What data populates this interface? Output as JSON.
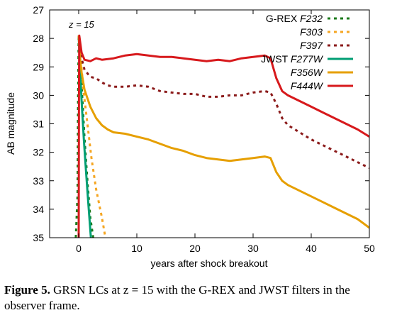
{
  "chart_data": {
    "type": "line",
    "xlabel": "years after shock breakout",
    "ylabel": "AB magnitude",
    "xlim": [
      -5,
      50
    ],
    "ylim": [
      35,
      27
    ],
    "y_inverted": true,
    "xticks": [
      0,
      10,
      20,
      30,
      40,
      50
    ],
    "yticks": [
      27,
      28,
      29,
      30,
      31,
      32,
      33,
      34,
      35
    ],
    "annotation": "z = 15",
    "legend_position": "top-right",
    "grid": false,
    "series": [
      {
        "name": "F232",
        "group": "G-REX",
        "color": "#1a7a1a",
        "dash": "dotted",
        "points": [
          [
            -0.5,
            35
          ],
          [
            -0.2,
            33.5
          ],
          [
            -0.1,
            30
          ],
          [
            0,
            27.9
          ],
          [
            0.2,
            28.5
          ],
          [
            0.6,
            30
          ],
          [
            1.0,
            31.5
          ],
          [
            1.5,
            33
          ],
          [
            2.0,
            34.3
          ],
          [
            2.5,
            35
          ]
        ]
      },
      {
        "name": "F303",
        "group": "G-REX",
        "color": "#f5a623",
        "dash": "dotted",
        "points": [
          [
            0,
            27.9
          ],
          [
            0.3,
            28.6
          ],
          [
            0.8,
            29.8
          ],
          [
            1.5,
            31
          ],
          [
            2.2,
            32.2
          ],
          [
            3,
            33.3
          ],
          [
            4,
            34.3
          ],
          [
            4.6,
            35
          ]
        ]
      },
      {
        "name": "F397",
        "group": "G-REX",
        "color": "#8b1a1a",
        "dash": "dotted",
        "points": [
          [
            0,
            27.9
          ],
          [
            0.5,
            28.7
          ],
          [
            1,
            29.1
          ],
          [
            2,
            29.35
          ],
          [
            3,
            29.4
          ],
          [
            4,
            29.55
          ],
          [
            5,
            29.65
          ],
          [
            6,
            29.7
          ],
          [
            8,
            29.7
          ],
          [
            10,
            29.65
          ],
          [
            12,
            29.7
          ],
          [
            14,
            29.85
          ],
          [
            16,
            29.9
          ],
          [
            18,
            29.95
          ],
          [
            20,
            29.95
          ],
          [
            22,
            30.05
          ],
          [
            24,
            30.05
          ],
          [
            26,
            30.0
          ],
          [
            28,
            30.0
          ],
          [
            30,
            29.9
          ],
          [
            32,
            29.85
          ],
          [
            33,
            29.9
          ],
          [
            34,
            30.3
          ],
          [
            35,
            30.8
          ],
          [
            36,
            31.05
          ],
          [
            38,
            31.3
          ],
          [
            40,
            31.55
          ],
          [
            42,
            31.75
          ],
          [
            44,
            31.95
          ],
          [
            46,
            32.15
          ],
          [
            48,
            32.35
          ],
          [
            50,
            32.55
          ]
        ]
      },
      {
        "name": "F277W",
        "group": "JWST",
        "color": "#009e73",
        "dash": "solid",
        "points": [
          [
            0,
            27.9
          ],
          [
            0.2,
            28.9
          ],
          [
            0.5,
            30.2
          ],
          [
            0.9,
            31.6
          ],
          [
            1.3,
            32.8
          ],
          [
            1.7,
            33.9
          ],
          [
            2.1,
            35
          ]
        ]
      },
      {
        "name": "F356W",
        "group": "JWST",
        "color": "#e69f00",
        "dash": "solid",
        "points": [
          [
            0,
            27.9
          ],
          [
            0.2,
            28.6
          ],
          [
            0.5,
            29.2
          ],
          [
            1,
            29.8
          ],
          [
            2,
            30.4
          ],
          [
            3,
            30.8
          ],
          [
            4,
            31.05
          ],
          [
            5,
            31.2
          ],
          [
            6,
            31.3
          ],
          [
            8,
            31.35
          ],
          [
            10,
            31.45
          ],
          [
            12,
            31.55
          ],
          [
            14,
            31.7
          ],
          [
            16,
            31.85
          ],
          [
            18,
            31.95
          ],
          [
            20,
            32.1
          ],
          [
            22,
            32.2
          ],
          [
            24,
            32.25
          ],
          [
            26,
            32.3
          ],
          [
            28,
            32.25
          ],
          [
            30,
            32.2
          ],
          [
            32,
            32.15
          ],
          [
            33,
            32.2
          ],
          [
            34,
            32.7
          ],
          [
            35,
            33.0
          ],
          [
            36,
            33.15
          ],
          [
            38,
            33.35
          ],
          [
            40,
            33.55
          ],
          [
            42,
            33.75
          ],
          [
            44,
            33.95
          ],
          [
            46,
            34.15
          ],
          [
            48,
            34.35
          ],
          [
            50,
            34.65
          ]
        ]
      },
      {
        "name": "F444W",
        "group": "JWST",
        "color": "#d7191c",
        "dash": "solid",
        "points": [
          [
            0,
            35
          ],
          [
            0.05,
            30
          ],
          [
            0.1,
            27.9
          ],
          [
            0.5,
            28.5
          ],
          [
            1,
            28.75
          ],
          [
            2,
            28.8
          ],
          [
            3,
            28.7
          ],
          [
            4,
            28.75
          ],
          [
            6,
            28.7
          ],
          [
            8,
            28.6
          ],
          [
            10,
            28.55
          ],
          [
            12,
            28.6
          ],
          [
            14,
            28.65
          ],
          [
            16,
            28.65
          ],
          [
            18,
            28.7
          ],
          [
            20,
            28.75
          ],
          [
            22,
            28.8
          ],
          [
            24,
            28.75
          ],
          [
            26,
            28.8
          ],
          [
            28,
            28.7
          ],
          [
            30,
            28.65
          ],
          [
            32,
            28.6
          ],
          [
            33,
            28.7
          ],
          [
            34,
            29.4
          ],
          [
            35,
            29.85
          ],
          [
            36,
            30.0
          ],
          [
            38,
            30.2
          ],
          [
            40,
            30.4
          ],
          [
            42,
            30.6
          ],
          [
            44,
            30.8
          ],
          [
            46,
            31.0
          ],
          [
            48,
            31.2
          ],
          [
            50,
            31.45
          ]
        ]
      }
    ]
  },
  "legend": {
    "grex_label": "G-REX",
    "jwst_label": "JWST"
  },
  "caption": {
    "label": "Figure 5.",
    "text": "GRSN LCs at z = 15 with the G-REX and JWST filters in the observer frame."
  }
}
